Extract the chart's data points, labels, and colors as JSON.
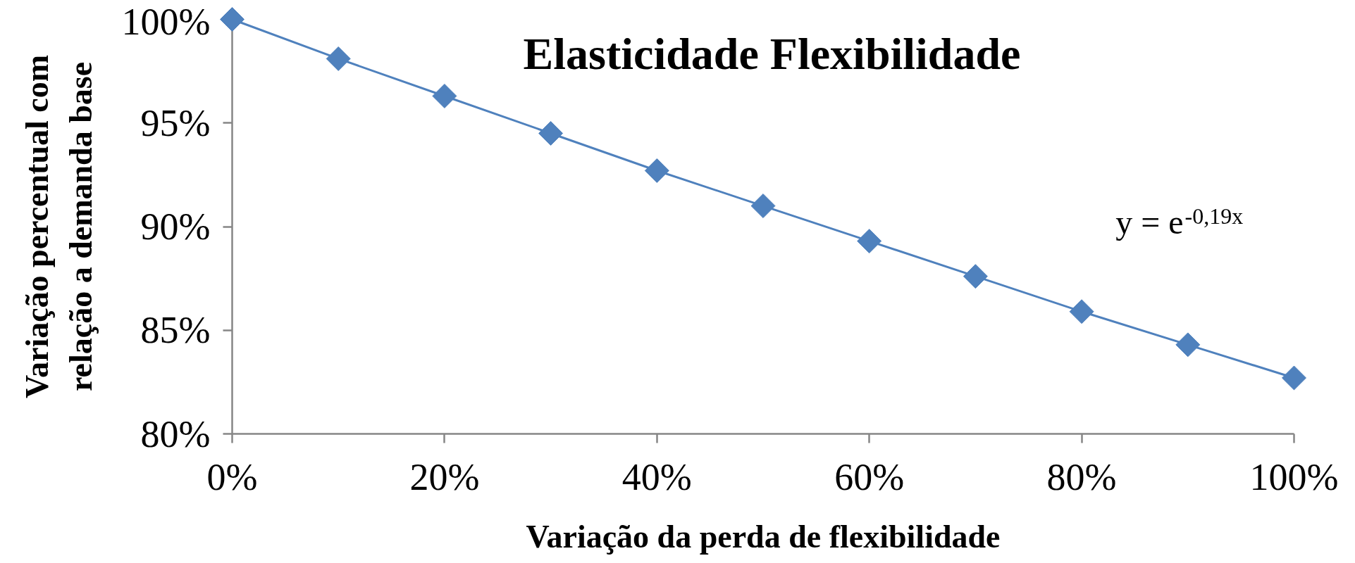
{
  "chart_data": {
    "type": "line",
    "title": "Elasticidade Flexibilidade",
    "xlabel": "Variação da perda de flexibilidade",
    "ylabel": "Variação percentual com relação a demanda base",
    "annotations": [
      "y = e$^{-0,19x}$"
    ],
    "x": [
      0,
      10,
      20,
      30,
      40,
      50,
      60,
      70,
      80,
      90,
      100
    ],
    "series": [
      {
        "color": "#4f81bd",
        "values": [
          100,
          98.1,
          96.3,
          94.5,
          92.7,
          91.0,
          89.3,
          87.6,
          85.9,
          84.3,
          82.7
        ]
      }
    ],
    "xlim": [
      0,
      100
    ],
    "ylim": [
      80,
      100
    ],
    "xticks": [
      {
        "value": 0,
        "label": "0%"
      },
      {
        "value": 20,
        "label": "20%"
      },
      {
        "value": 40,
        "label": "40%"
      },
      {
        "value": 60,
        "label": "60%"
      },
      {
        "value": 80,
        "label": "80%"
      },
      {
        "value": 100,
        "label": "100%"
      }
    ],
    "yticks": [
      {
        "value": 80,
        "label": "80%"
      },
      {
        "value": 85,
        "label": "85%"
      },
      {
        "value": 90,
        "label": "90%"
      },
      {
        "value": 95,
        "label": "95%"
      },
      {
        "value": 100,
        "label": "100%"
      }
    ],
    "marker": "diamond",
    "line_style": "solid",
    "grid": false
  }
}
